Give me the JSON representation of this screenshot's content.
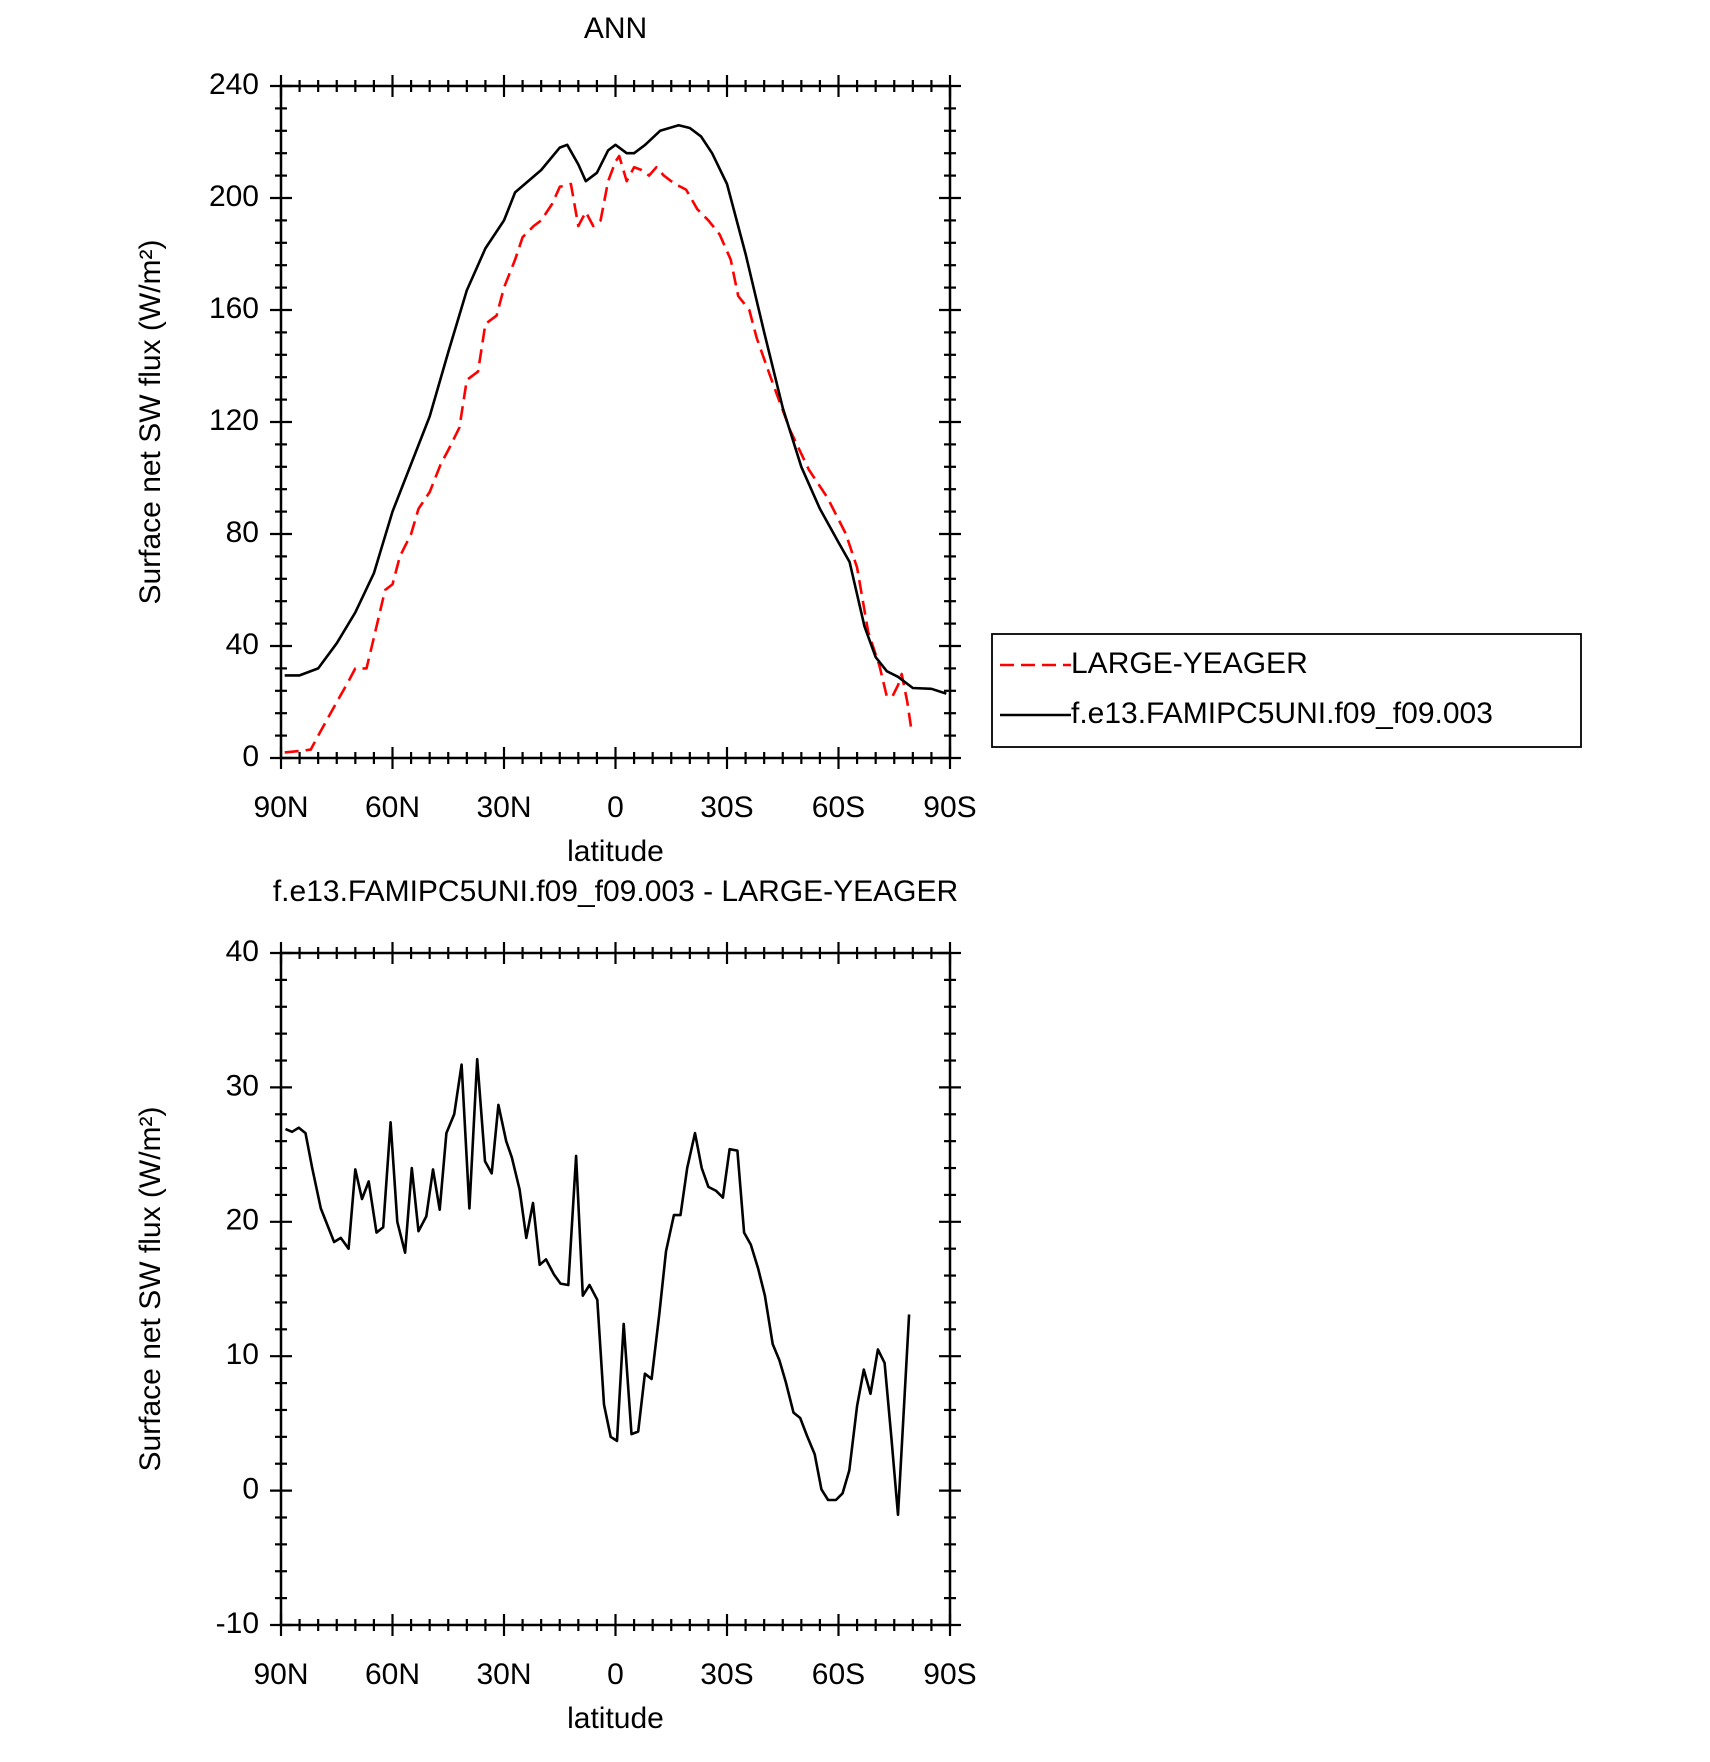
{
  "chart_data": [
    {
      "type": "line",
      "title": "ANN",
      "x_label": "latitude",
      "y_label": "Surface net SW flux (W/m²)",
      "xlim": [
        90,
        -90
      ],
      "xticks": [
        {
          "value": 90,
          "label": "90N"
        },
        {
          "value": 60,
          "label": "60N"
        },
        {
          "value": 30,
          "label": "30N"
        },
        0,
        {
          "value": -30,
          "label": "30S"
        },
        {
          "value": -60,
          "label": "60S"
        },
        {
          "value": -90,
          "label": "90S"
        }
      ],
      "ylim": [
        0,
        240
      ],
      "yticks": [
        0,
        40,
        80,
        120,
        160,
        200,
        240
      ],
      "legend": "outside right",
      "series": [
        {
          "name": "LARGE-YEAGER",
          "color": "#ff0000",
          "dash": true,
          "x": [
            89,
            85,
            82,
            80,
            75,
            72,
            70,
            67,
            65,
            62,
            60,
            58,
            55,
            53,
            50,
            47,
            45,
            42,
            40,
            37,
            35,
            32,
            30,
            27,
            25,
            22,
            20,
            17,
            15,
            12,
            10,
            8,
            6,
            4,
            2,
            0,
            -1,
            -3,
            -5,
            -7,
            -9,
            -11,
            -13,
            -16,
            -19,
            -22,
            -25,
            -28,
            -31,
            -33,
            -36,
            -38,
            -42,
            -47,
            -52,
            -57,
            -62,
            -65,
            -68,
            -71,
            -73,
            -74.5,
            -76,
            -77,
            -78.5,
            -79.5
          ],
          "values": [
            2,
            2.5,
            3,
            8,
            20,
            27,
            32,
            32,
            43,
            60,
            62,
            72,
            80,
            89,
            95,
            105,
            110,
            118,
            135,
            138,
            155,
            158,
            168,
            178,
            186,
            190,
            192,
            198,
            204,
            205,
            190,
            195,
            190,
            192,
            206,
            213,
            215,
            206,
            211,
            210,
            208,
            211,
            208,
            205,
            203,
            196,
            192,
            187,
            178,
            165,
            160,
            150,
            135,
            117,
            103,
            93,
            80,
            68,
            45,
            33,
            22,
            22,
            26,
            30,
            20,
            11
          ]
        },
        {
          "name": "f.e13.FAMIPC5UNI.f09_f09.003",
          "color": "#000000",
          "dash": false,
          "x": [
            89,
            85,
            80,
            75,
            70,
            65,
            60,
            55,
            50,
            45,
            40,
            35,
            30,
            27,
            20,
            15,
            13,
            10,
            8,
            5,
            2,
            0,
            -3,
            -5,
            -8,
            -12,
            -17,
            -20,
            -23,
            -26,
            -30,
            -35,
            -40,
            -45,
            -50,
            -55,
            -60,
            -63,
            -67,
            -70,
            -73,
            -76,
            -80,
            -85,
            -89
          ],
          "values": [
            29.5,
            29.5,
            32,
            41,
            52,
            66,
            88,
            105,
            122,
            145,
            167,
            182,
            192,
            202,
            210,
            218,
            219,
            212,
            206,
            209,
            217,
            219,
            216,
            216,
            219,
            224,
            226,
            225,
            222,
            216,
            205,
            180,
            152,
            125,
            104,
            89,
            77,
            70,
            47,
            36,
            31,
            29,
            25,
            24.7,
            23
          ]
        }
      ]
    },
    {
      "type": "line",
      "title": "f.e13.FAMIPC5UNI.f09_f09.003 - LARGE-YEAGER",
      "x_label": "latitude",
      "y_label": "Surface net SW flux (W/m²)",
      "xlim": [
        90,
        -90
      ],
      "xticks": [
        {
          "value": 90,
          "label": "90N"
        },
        {
          "value": 60,
          "label": "60N"
        },
        {
          "value": 30,
          "label": "30N"
        },
        0,
        {
          "value": -30,
          "label": "30S"
        },
        {
          "value": -60,
          "label": "60S"
        },
        {
          "value": -90,
          "label": "90S"
        }
      ],
      "ylim": [
        -10,
        40
      ],
      "yticks": [
        -10,
        0,
        10,
        20,
        30,
        40
      ],
      "series": [
        {
          "color": "#000000",
          "dash": false,
          "x": [
            88.8,
            87,
            85.2,
            83.4,
            81.6,
            79.3,
            75.7,
            73.9,
            71.8,
            70,
            68.2,
            66.4,
            64.3,
            62.5,
            60.5,
            58.7,
            56.6,
            54.8,
            53,
            50.9,
            49.1,
            47.3,
            45.5,
            43.4,
            41.4,
            39.3,
            37.2,
            35.1,
            33.3,
            31.5,
            29.4,
            27.9,
            25.8,
            24,
            22.2,
            20.4,
            18.7,
            16.6,
            14.8,
            12.7,
            10.6,
            8.8,
            7,
            4.9,
            3.1,
            1.3,
            -0.4,
            -2.2,
            -4.3,
            -6.1,
            -7.9,
            -9.7,
            -11.8,
            -13.6,
            -15.7,
            -17.5,
            -19.3,
            -21.4,
            -23.2,
            -25,
            -27.1,
            -28.9,
            -30.7,
            -32.8,
            -34.6,
            -36.4,
            -38.4,
            -40.2,
            -42.3,
            -44.1,
            -45.8,
            -47.9,
            -49.7,
            -51.5,
            -53.6,
            -55.4,
            -57.2,
            -59.3,
            -61.1,
            -62.9,
            -65,
            -66.8,
            -68.6,
            -70.6,
            -72.4,
            -74.2,
            -76,
            -79
          ],
          "values": [
            26.9,
            26.7,
            27,
            26.6,
            24,
            21,
            18.5,
            18.8,
            18,
            23.9,
            21.7,
            23,
            19.2,
            19.6,
            27.4,
            20,
            17.7,
            24,
            19.3,
            20.4,
            23.9,
            20.9,
            26.6,
            28,
            31.7,
            21,
            32.1,
            24.5,
            23.6,
            28.7,
            26,
            24.8,
            22.4,
            18.8,
            21.4,
            16.8,
            17.2,
            16.1,
            15.4,
            15.3,
            24.9,
            14.5,
            15.3,
            14.2,
            6.4,
            4,
            3.7,
            12.4,
            4.2,
            4.4,
            8.7,
            8.3,
            13.2,
            17.8,
            20.5,
            20.5,
            24,
            26.6,
            24,
            22.6,
            22.3,
            21.8,
            25.4,
            25.3,
            19.2,
            18.3,
            16.5,
            14.5,
            10.9,
            9.7,
            8.1,
            5.8,
            5.4,
            4.1,
            2.7,
            0.1,
            -0.7,
            -0.7,
            -0.2,
            1.5,
            6.3,
            9,
            7.2,
            10.5,
            9.5,
            4,
            -1.8,
            13.1
          ]
        }
      ]
    }
  ]
}
